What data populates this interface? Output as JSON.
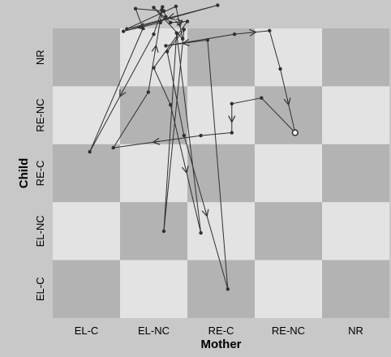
{
  "chart_data": {
    "type": "state-space-grid",
    "xlabel": "Mother",
    "ylabel": "Child",
    "x_categories": [
      "EL-C",
      "EL-NC",
      "RE-C",
      "RE-NC",
      "NR"
    ],
    "y_categories": [
      "EL-C",
      "EL-NC",
      "RE-C",
      "RE-NC",
      "NR"
    ],
    "grid": true,
    "colors": {
      "dark_cell": "#b3b3b3",
      "light_cell": "#e3e3e3",
      "background": "#c8c8c8",
      "trajectory": "#303030"
    },
    "trajectory": [
      {
        "x": 2.12,
        "y": 5.82,
        "arrow": false
      },
      {
        "x": 2.0,
        "y": 5.4,
        "arrow": true
      },
      {
        "x": 1.05,
        "y": 3.37,
        "arrow": false
      },
      {
        "x": 1.84,
        "y": 5.5,
        "arrow": false
      },
      {
        "x": 1.73,
        "y": 5.84,
        "arrow": false
      },
      {
        "x": 2.15,
        "y": 5.8,
        "arrow": false
      },
      {
        "x": 2.18,
        "y": 5.7,
        "arrow": false
      },
      {
        "x": 2.1,
        "y": 5.6,
        "arrow": true
      },
      {
        "x": 1.55,
        "y": 5.45,
        "arrow": false
      },
      {
        "x": 2.95,
        "y": 5.9,
        "arrow": true
      },
      {
        "x": 1.6,
        "y": 5.49,
        "arrow": false
      },
      {
        "x": 2.33,
        "y": 5.88,
        "arrow": true
      },
      {
        "x": 2.43,
        "y": 5.32,
        "arrow": false
      },
      {
        "x": 2.0,
        "y": 5.86,
        "arrow": false
      },
      {
        "x": 2.25,
        "y": 5.6,
        "arrow": true
      },
      {
        "x": 2.5,
        "y": 5.62,
        "arrow": false
      },
      {
        "x": 2.0,
        "y": 4.82,
        "arrow": false
      },
      {
        "x": 2.25,
        "y": 4.18,
        "arrow": true
      },
      {
        "x": 2.7,
        "y": 1.97,
        "arrow": false
      },
      {
        "x": 2.34,
        "y": 5.42,
        "arrow": false
      },
      {
        "x": 2.15,
        "y": 2.0,
        "arrow": false
      },
      {
        "x": 2.45,
        "y": 5.48,
        "arrow": false
      },
      {
        "x": 2.2,
        "y": 5.1,
        "arrow": false
      },
      {
        "x": 2.45,
        "y": 3.65,
        "arrow": true
      },
      {
        "x": 3.1,
        "y": 1.0,
        "arrow": false
      },
      {
        "x": 2.8,
        "y": 5.3,
        "arrow": true
      },
      {
        "x": 2.18,
        "y": 5.2,
        "arrow": false
      },
      {
        "x": 3.2,
        "y": 5.4,
        "arrow": true
      },
      {
        "x": 3.72,
        "y": 5.46,
        "arrow": false
      },
      {
        "x": 3.88,
        "y": 4.8,
        "arrow": true
      },
      {
        "x": 4.1,
        "y": 3.7,
        "arrow": false
      },
      {
        "x": 3.6,
        "y": 4.3,
        "arrow": false
      },
      {
        "x": 3.16,
        "y": 4.2,
        "arrow": true
      },
      {
        "x": 3.16,
        "y": 3.7,
        "arrow": false
      },
      {
        "x": 2.7,
        "y": 3.65,
        "arrow": true
      },
      {
        "x": 1.4,
        "y": 3.44,
        "arrow": false
      },
      {
        "x": 1.92,
        "y": 4.4,
        "arrow": true
      },
      {
        "x": 2.13,
        "y": 5.87,
        "arrow": false
      }
    ],
    "end_marker": {
      "x": 4.1,
      "y": 3.7
    }
  }
}
